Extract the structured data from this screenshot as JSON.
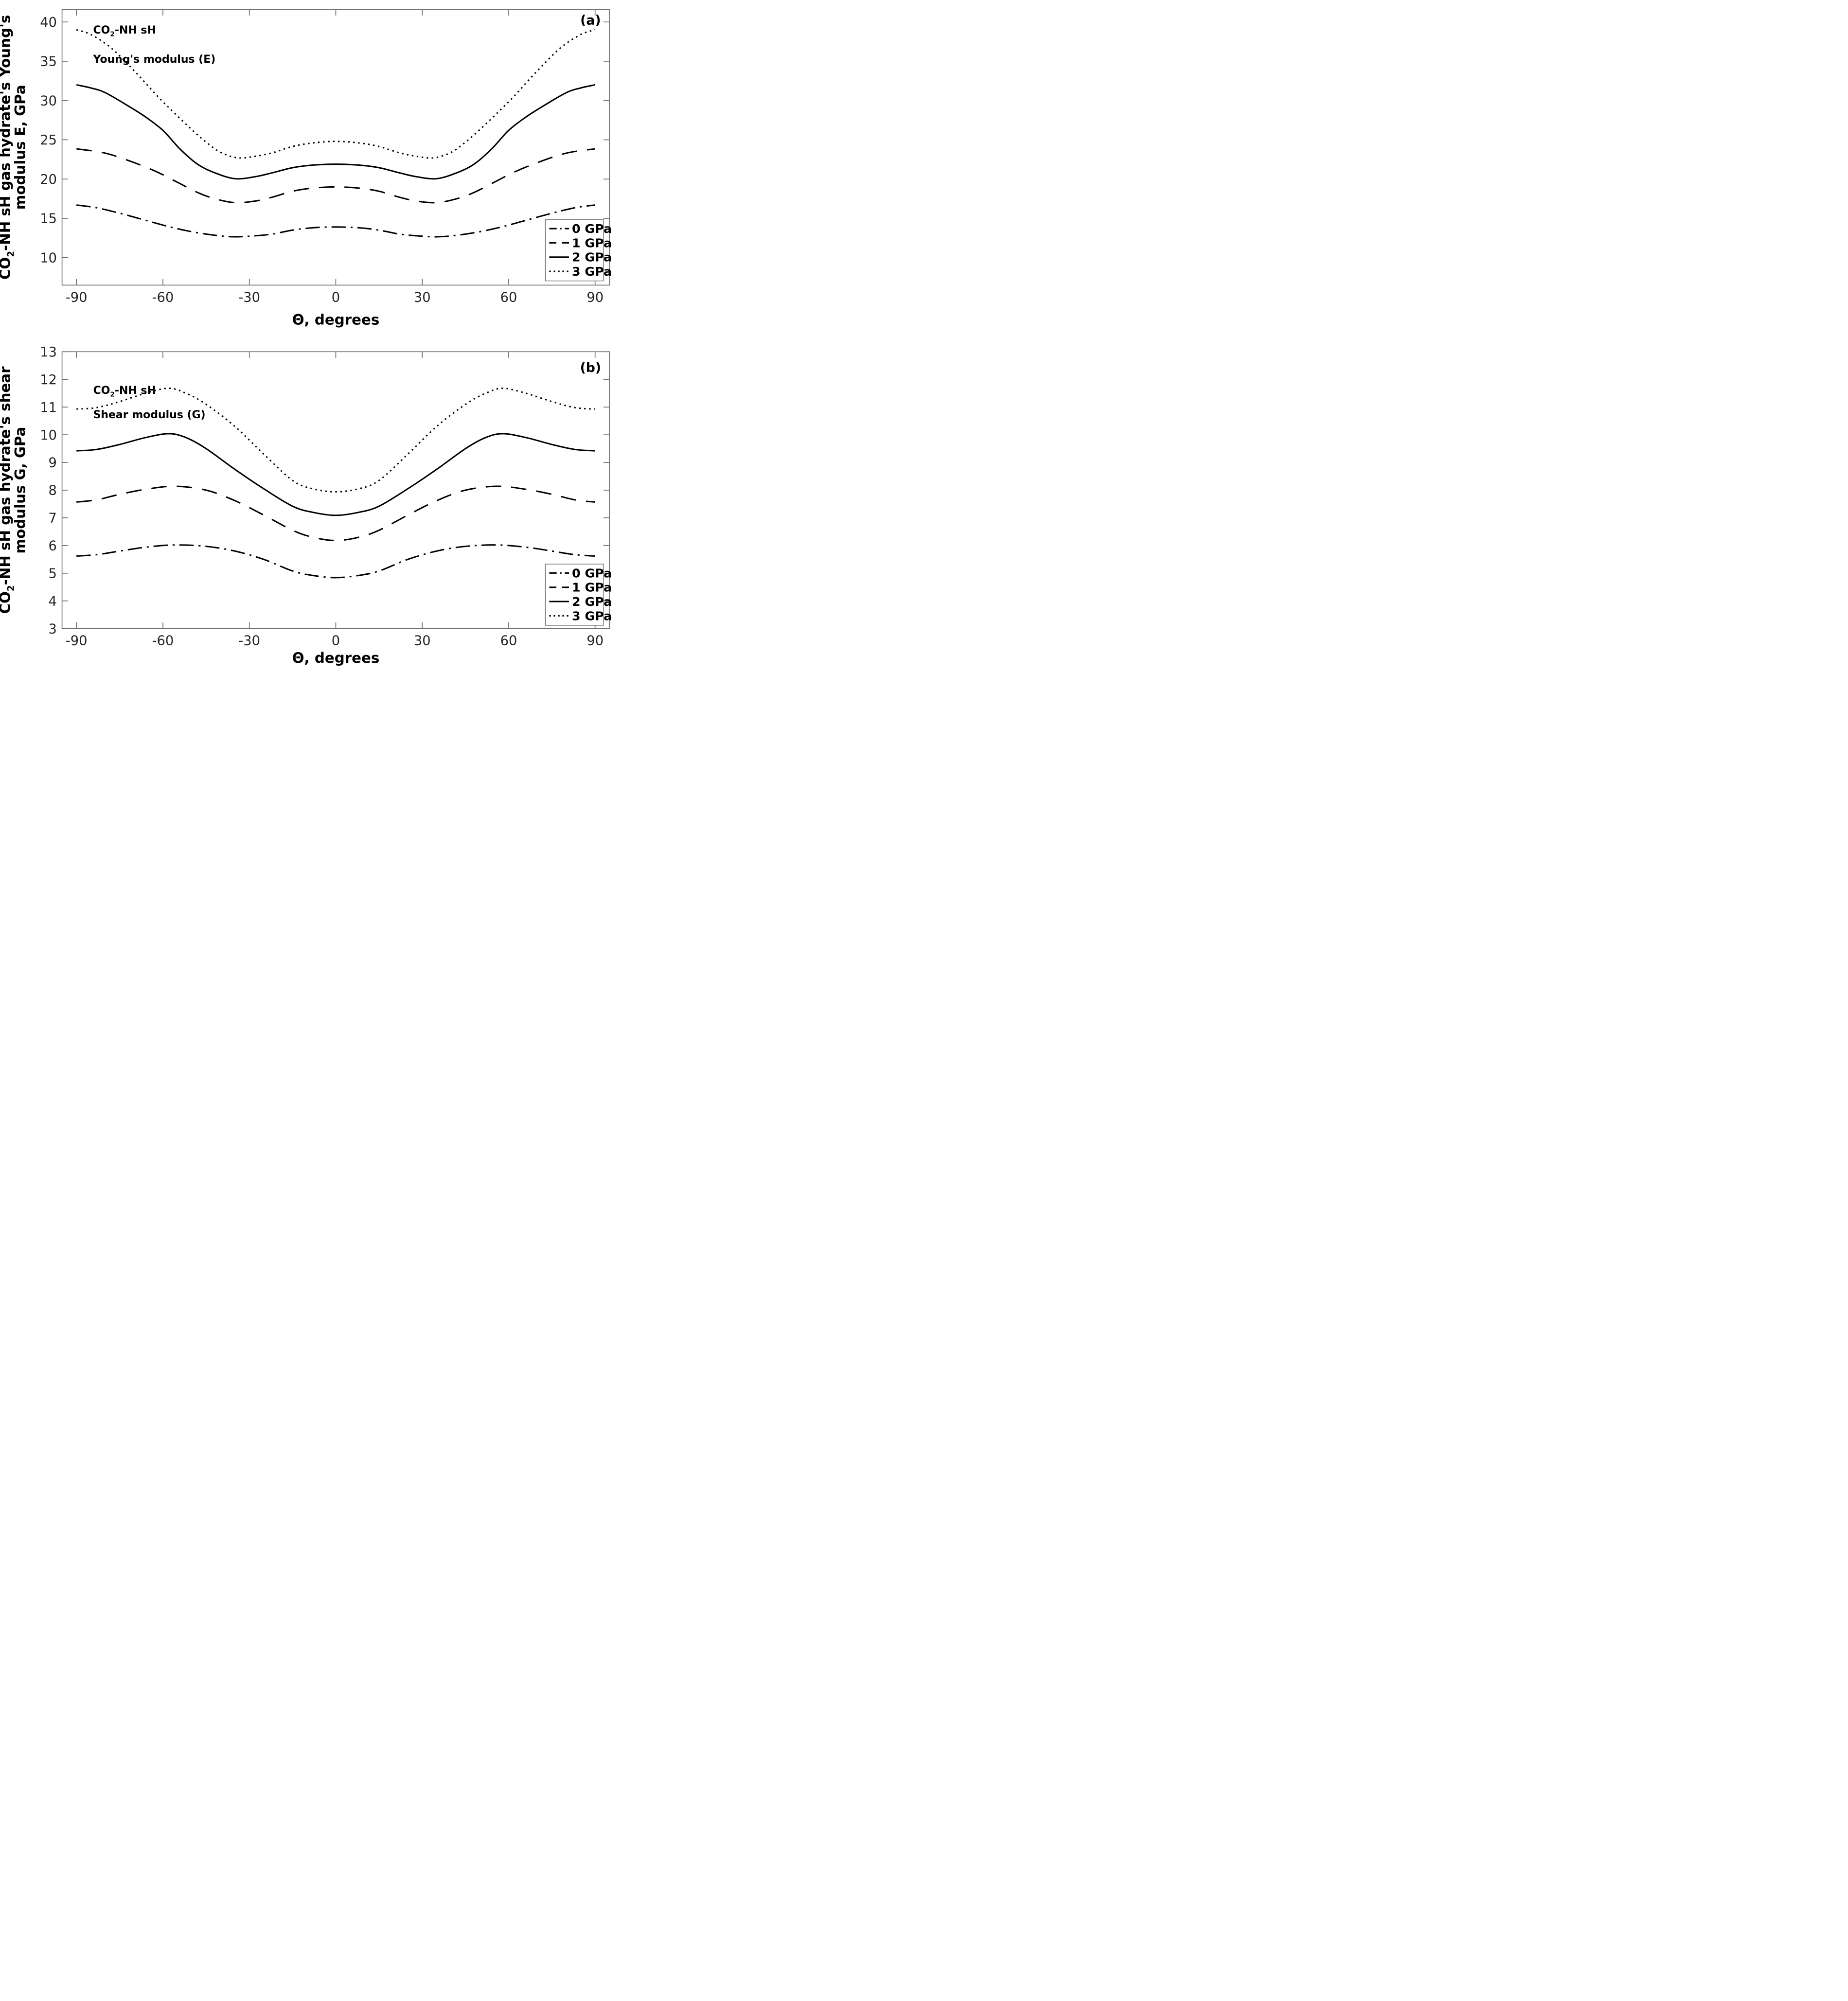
{
  "figure": {
    "background": "#ffffff",
    "curve_color": "#000000",
    "spine_color": "#6f6f6f",
    "tick_label_color": "#262626",
    "text_color": "#000000"
  },
  "chart_data": [
    {
      "id": "a",
      "type": "line",
      "panel_label": "(a)",
      "annotation_line1": [
        {
          "t": "CO"
        },
        {
          "t": "2",
          "sub": true
        },
        {
          "t": "-NH sH"
        }
      ],
      "annotation_line2": [
        {
          "t": "Young's modulus (E)"
        }
      ],
      "ylabel_line1": [
        {
          "t": "CO"
        },
        {
          "t": "2",
          "sub": true
        },
        {
          "t": "-NH sH gas hydrate's Young's"
        }
      ],
      "ylabel_line2": [
        {
          "t": "modulus E, GPa"
        }
      ],
      "xlabel": "Θ, degrees",
      "xlim": [
        -95,
        95
      ],
      "ylim": [
        6.5,
        41.6
      ],
      "xticks": [
        -90,
        -60,
        -30,
        0,
        30,
        60,
        90
      ],
      "yticks": [
        10,
        15,
        20,
        25,
        30,
        35,
        40
      ],
      "grid": false,
      "legend": {
        "position": "bottom-right",
        "labels": [
          "0 GPa",
          "1 GPa",
          "2 GPa",
          "3 GPa"
        ]
      },
      "series": [
        {
          "name": "0 GPa",
          "pressure_gpa": 0,
          "style": "dashdot",
          "points": [
            [
              -90,
              16.7
            ],
            [
              -83,
              16.35
            ],
            [
              -75,
              15.65
            ],
            [
              -66,
              14.75
            ],
            [
              -58,
              13.95
            ],
            [
              -50,
              13.3
            ],
            [
              -42,
              12.85
            ],
            [
              -35,
              12.65
            ],
            [
              -28,
              12.78
            ],
            [
              -22,
              13.0
            ],
            [
              -15,
              13.5
            ],
            [
              -8,
              13.8
            ],
            [
              0,
              13.9
            ],
            [
              8,
              13.8
            ],
            [
              15,
              13.5
            ],
            [
              22,
              13.0
            ],
            [
              28,
              12.78
            ],
            [
              35,
              12.65
            ],
            [
              42,
              12.85
            ],
            [
              50,
              13.3
            ],
            [
              58,
              13.95
            ],
            [
              66,
              14.75
            ],
            [
              75,
              15.65
            ],
            [
              83,
              16.35
            ],
            [
              90,
              16.7
            ]
          ]
        },
        {
          "name": "1 GPa",
          "pressure_gpa": 1,
          "style": "dashed",
          "points": [
            [
              -90,
              23.85
            ],
            [
              -80,
              23.3
            ],
            [
              -70,
              22.1
            ],
            [
              -62,
              20.9
            ],
            [
              -55,
              19.6
            ],
            [
              -48,
              18.3
            ],
            [
              -42,
              17.5
            ],
            [
              -35,
              17.0
            ],
            [
              -28,
              17.2
            ],
            [
              -22,
              17.7
            ],
            [
              -15,
              18.45
            ],
            [
              -8,
              18.85
            ],
            [
              0,
              19.0
            ],
            [
              8,
              18.85
            ],
            [
              15,
              18.45
            ],
            [
              22,
              17.7
            ],
            [
              28,
              17.2
            ],
            [
              35,
              17.0
            ],
            [
              42,
              17.5
            ],
            [
              48,
              18.3
            ],
            [
              55,
              19.6
            ],
            [
              62,
              20.9
            ],
            [
              70,
              22.1
            ],
            [
              80,
              23.3
            ],
            [
              90,
              23.85
            ]
          ]
        },
        {
          "name": "2 GPa",
          "pressure_gpa": 2,
          "style": "solid",
          "points": [
            [
              -90,
              32.0
            ],
            [
              -85,
              31.6
            ],
            [
              -80,
              31.0
            ],
            [
              -72,
              29.3
            ],
            [
              -66,
              27.9
            ],
            [
              -60,
              26.2
            ],
            [
              -54,
              23.8
            ],
            [
              -48,
              21.9
            ],
            [
              -42,
              20.8
            ],
            [
              -35,
              20.05
            ],
            [
              -28,
              20.3
            ],
            [
              -22,
              20.8
            ],
            [
              -15,
              21.45
            ],
            [
              -8,
              21.78
            ],
            [
              0,
              21.9
            ],
            [
              8,
              21.78
            ],
            [
              15,
              21.45
            ],
            [
              22,
              20.8
            ],
            [
              28,
              20.3
            ],
            [
              35,
              20.05
            ],
            [
              42,
              20.8
            ],
            [
              48,
              21.9
            ],
            [
              54,
              23.8
            ],
            [
              60,
              26.2
            ],
            [
              66,
              27.9
            ],
            [
              72,
              29.3
            ],
            [
              80,
              31.0
            ],
            [
              85,
              31.6
            ],
            [
              90,
              32.0
            ]
          ]
        },
        {
          "name": "3 GPa",
          "pressure_gpa": 3,
          "style": "dotted",
          "points": [
            [
              -90,
              39.0
            ],
            [
              -85,
              38.4
            ],
            [
              -78,
              36.7
            ],
            [
              -70,
              33.8
            ],
            [
              -62,
              30.6
            ],
            [
              -56,
              28.4
            ],
            [
              -50,
              26.3
            ],
            [
              -45,
              24.7
            ],
            [
              -40,
              23.4
            ],
            [
              -34,
              22.7
            ],
            [
              -28,
              22.9
            ],
            [
              -22,
              23.35
            ],
            [
              -15,
              24.15
            ],
            [
              -8,
              24.6
            ],
            [
              0,
              24.8
            ],
            [
              8,
              24.6
            ],
            [
              15,
              24.15
            ],
            [
              22,
              23.35
            ],
            [
              28,
              22.9
            ],
            [
              34,
              22.7
            ],
            [
              40,
              23.4
            ],
            [
              45,
              24.7
            ],
            [
              50,
              26.3
            ],
            [
              56,
              28.4
            ],
            [
              62,
              30.6
            ],
            [
              70,
              33.8
            ],
            [
              78,
              36.7
            ],
            [
              85,
              38.4
            ],
            [
              90,
              39.0
            ]
          ]
        }
      ]
    },
    {
      "id": "b",
      "type": "line",
      "panel_label": "(b)",
      "annotation_line1": [
        {
          "t": "CO"
        },
        {
          "t": "2",
          "sub": true
        },
        {
          "t": "-NH sH"
        }
      ],
      "annotation_line2": [
        {
          "t": "Shear modulus (G)"
        }
      ],
      "ylabel_line1": [
        {
          "t": "CO"
        },
        {
          "t": "2",
          "sub": true
        },
        {
          "t": "-NH sH gas hydrate's shear"
        }
      ],
      "ylabel_line2": [
        {
          "t": "modulus G, GPa"
        }
      ],
      "xlabel": "Θ, degrees",
      "xlim": [
        -95,
        95
      ],
      "ylim": [
        3,
        13
      ],
      "xticks": [
        -90,
        -60,
        -30,
        0,
        30,
        60,
        90
      ],
      "yticks": [
        3,
        4,
        5,
        6,
        7,
        8,
        9,
        10,
        11,
        12,
        13
      ],
      "grid": false,
      "legend": {
        "position": "bottom-right",
        "labels": [
          "0 GPa",
          "1 GPa",
          "2 GPa",
          "3 GPa"
        ]
      },
      "series": [
        {
          "name": "0 GPa",
          "pressure_gpa": 0,
          "style": "dashdot",
          "points": [
            [
              -90,
              5.62
            ],
            [
              -83,
              5.67
            ],
            [
              -75,
              5.8
            ],
            [
              -66,
              5.94
            ],
            [
              -56,
              6.02
            ],
            [
              -45,
              5.97
            ],
            [
              -35,
              5.8
            ],
            [
              -25,
              5.5
            ],
            [
              -15,
              5.08
            ],
            [
              -8,
              4.92
            ],
            [
              0,
              4.84
            ],
            [
              8,
              4.92
            ],
            [
              15,
              5.08
            ],
            [
              25,
              5.5
            ],
            [
              35,
              5.8
            ],
            [
              45,
              5.97
            ],
            [
              56,
              6.02
            ],
            [
              66,
              5.94
            ],
            [
              75,
              5.8
            ],
            [
              83,
              5.67
            ],
            [
              90,
              5.62
            ]
          ]
        },
        {
          "name": "1 GPa",
          "pressure_gpa": 1,
          "style": "dashed",
          "points": [
            [
              -90,
              7.57
            ],
            [
              -83,
              7.65
            ],
            [
              -75,
              7.85
            ],
            [
              -66,
              8.03
            ],
            [
              -56,
              8.14
            ],
            [
              -45,
              8.0
            ],
            [
              -35,
              7.62
            ],
            [
              -25,
              7.1
            ],
            [
              -15,
              6.55
            ],
            [
              -8,
              6.3
            ],
            [
              0,
              6.18
            ],
            [
              8,
              6.3
            ],
            [
              15,
              6.55
            ],
            [
              25,
              7.1
            ],
            [
              35,
              7.62
            ],
            [
              45,
              8.0
            ],
            [
              56,
              8.14
            ],
            [
              66,
              8.03
            ],
            [
              75,
              7.85
            ],
            [
              83,
              7.65
            ],
            [
              90,
              7.57
            ]
          ]
        },
        {
          "name": "2 GPa",
          "pressure_gpa": 2,
          "style": "solid",
          "points": [
            [
              -90,
              9.42
            ],
            [
              -83,
              9.47
            ],
            [
              -75,
              9.65
            ],
            [
              -66,
              9.9
            ],
            [
              -58,
              10.04
            ],
            [
              -52,
              9.9
            ],
            [
              -45,
              9.5
            ],
            [
              -35,
              8.75
            ],
            [
              -25,
              8.05
            ],
            [
              -15,
              7.42
            ],
            [
              -8,
              7.2
            ],
            [
              0,
              7.09
            ],
            [
              8,
              7.2
            ],
            [
              15,
              7.42
            ],
            [
              25,
              8.05
            ],
            [
              35,
              8.75
            ],
            [
              45,
              9.5
            ],
            [
              52,
              9.9
            ],
            [
              58,
              10.04
            ],
            [
              66,
              9.9
            ],
            [
              75,
              9.65
            ],
            [
              83,
              9.47
            ],
            [
              90,
              9.42
            ]
          ]
        },
        {
          "name": "3 GPa",
          "pressure_gpa": 3,
          "style": "dotted",
          "points": [
            [
              -90,
              10.93
            ],
            [
              -83,
              10.98
            ],
            [
              -75,
              11.2
            ],
            [
              -66,
              11.5
            ],
            [
              -58,
              11.68
            ],
            [
              -52,
              11.5
            ],
            [
              -45,
              11.1
            ],
            [
              -35,
              10.3
            ],
            [
              -25,
              9.3
            ],
            [
              -15,
              8.35
            ],
            [
              -8,
              8.05
            ],
            [
              0,
              7.94
            ],
            [
              8,
              8.05
            ],
            [
              15,
              8.35
            ],
            [
              25,
              9.3
            ],
            [
              35,
              10.3
            ],
            [
              45,
              11.1
            ],
            [
              52,
              11.5
            ],
            [
              58,
              11.68
            ],
            [
              66,
              11.5
            ],
            [
              75,
              11.2
            ],
            [
              83,
              10.98
            ],
            [
              90,
              10.93
            ]
          ]
        }
      ]
    }
  ]
}
